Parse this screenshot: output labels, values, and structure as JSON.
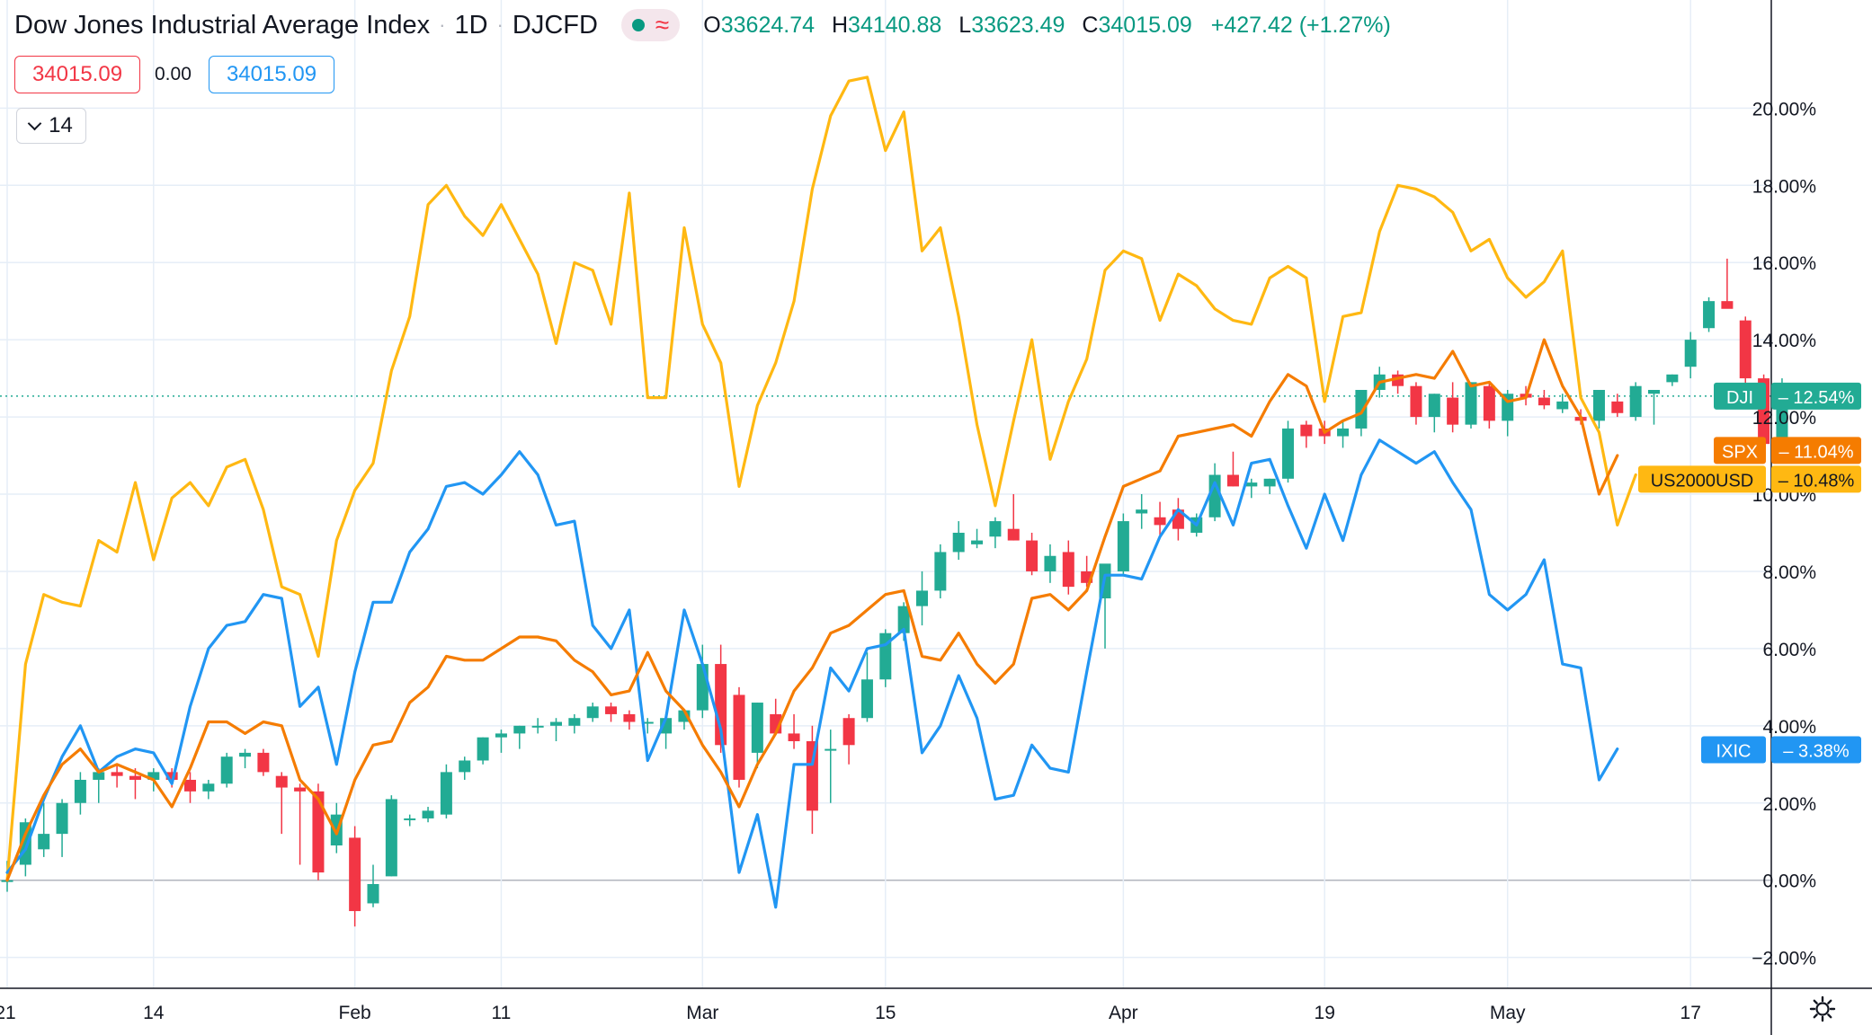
{
  "header": {
    "title": "Dow Jones Industrial Average Index",
    "interval": "1D",
    "exchange": "DJCFD",
    "ohlc": {
      "o_label": "O",
      "o": "33624.74",
      "h_label": "H",
      "h": "34140.88",
      "l_label": "L",
      "l": "33623.49",
      "c_label": "C",
      "c": "34015.09",
      "change": "+427.42 (+1.27%)"
    }
  },
  "price_boxes": {
    "sell": "34015.09",
    "spread": "0.00",
    "buy": "34015.09"
  },
  "period_selector": {
    "value": "14"
  },
  "colors": {
    "DJI_up": "#22ab94",
    "DJI_down": "#f23645",
    "SPX": "#f57c00",
    "US2000USD": "#ffb812",
    "IXIC": "#2196f3",
    "grid": "#e6eef7",
    "axis_text": "#131722",
    "zero_line": "#b2b5be"
  },
  "chart_data": {
    "type": "line",
    "y_unit": "% change",
    "ylim": [
      -2.8,
      22.8
    ],
    "y_ticks": [
      -2,
      0,
      2,
      4,
      6,
      8,
      10,
      12,
      14,
      16,
      18,
      20
    ],
    "y_tick_labels": [
      "−2.00%",
      "0.00%",
      "2.00%",
      "4.00%",
      "6.00%",
      "8.00%",
      "10.00%",
      "12.00%",
      "14.00%",
      "16.00%",
      "18.00%",
      "20.00%"
    ],
    "x_ticks": [
      {
        "label": "21",
        "index": 0
      },
      {
        "label": "14",
        "index": 8
      },
      {
        "label": "Feb",
        "index": 19
      },
      {
        "label": "11",
        "index": 27
      },
      {
        "label": "Mar",
        "index": 38
      },
      {
        "label": "15",
        "index": 48
      },
      {
        "label": "Apr",
        "index": 61
      },
      {
        "label": "19",
        "index": 72
      },
      {
        "label": "May",
        "index": 82
      },
      {
        "label": "17",
        "index": 92
      }
    ],
    "grid": true,
    "series": [
      {
        "name": "US2000USD",
        "type": "line",
        "last_label": "10.48%",
        "values": [
          0.0,
          5.6,
          7.4,
          7.2,
          7.1,
          8.8,
          8.5,
          10.3,
          8.3,
          9.9,
          10.3,
          9.7,
          10.7,
          10.9,
          9.6,
          7.6,
          7.4,
          5.8,
          8.8,
          10.1,
          10.8,
          13.2,
          14.6,
          17.5,
          18.0,
          17.2,
          16.7,
          17.5,
          16.6,
          15.7,
          13.9,
          16.0,
          15.8,
          14.4,
          17.8,
          12.5,
          12.5,
          16.9,
          14.4,
          13.4,
          10.2,
          12.3,
          13.4,
          15.0,
          17.9,
          19.8,
          20.7,
          20.8,
          18.9,
          19.9,
          16.3,
          16.9,
          14.6,
          11.8,
          9.7,
          11.9,
          14.0,
          10.9,
          12.4,
          13.5,
          15.8,
          16.3,
          16.1,
          14.5,
          15.7,
          15.4,
          14.8,
          14.5,
          14.4,
          15.6,
          15.9,
          15.6,
          12.4,
          14.6,
          14.7,
          16.8,
          18.0,
          17.9,
          17.7,
          17.3,
          16.3,
          16.6,
          15.6,
          15.1,
          15.5,
          16.3,
          12.5,
          11.6,
          9.2,
          10.5
        ]
      },
      {
        "name": "IXIC",
        "type": "line",
        "last_label": "3.38%",
        "values": [
          0.2,
          0.8,
          2.1,
          3.2,
          4.0,
          2.8,
          3.2,
          3.4,
          3.3,
          2.5,
          4.5,
          6.0,
          6.6,
          6.7,
          7.4,
          7.3,
          4.5,
          5.0,
          3.0,
          5.4,
          7.2,
          7.2,
          8.5,
          9.1,
          10.2,
          10.3,
          10.0,
          10.5,
          11.1,
          10.5,
          9.2,
          9.3,
          6.6,
          6.0,
          7.0,
          3.1,
          4.2,
          7.0,
          5.6,
          3.9,
          0.2,
          1.7,
          -0.7,
          3.0,
          3.0,
          5.5,
          4.9,
          6.0,
          6.1,
          6.5,
          3.3,
          4.0,
          5.3,
          4.2,
          2.1,
          2.2,
          3.5,
          2.9,
          2.8,
          5.4,
          7.9,
          7.9,
          7.8,
          8.9,
          9.6,
          9.2,
          10.3,
          9.2,
          10.8,
          10.9,
          9.7,
          8.6,
          10.0,
          8.8,
          10.5,
          11.4,
          11.1,
          10.8,
          11.1,
          10.3,
          9.6,
          7.4,
          7.0,
          7.4,
          8.3,
          5.6,
          5.5,
          2.6,
          3.4
        ]
      },
      {
        "name": "SPX",
        "type": "line",
        "last_label": "11.04%",
        "values": [
          0.0,
          1.2,
          2.2,
          3.0,
          3.4,
          2.8,
          3.0,
          2.8,
          2.6,
          1.9,
          2.9,
          4.1,
          4.1,
          3.8,
          4.1,
          4.0,
          2.6,
          2.1,
          1.2,
          2.6,
          3.5,
          3.6,
          4.6,
          5.0,
          5.8,
          5.7,
          5.7,
          6.0,
          6.3,
          6.3,
          6.2,
          5.7,
          5.4,
          4.8,
          4.9,
          5.9,
          4.9,
          4.4,
          3.5,
          2.8,
          1.9,
          3.0,
          3.8,
          4.9,
          5.5,
          6.4,
          6.6,
          7.0,
          7.4,
          7.5,
          5.8,
          5.7,
          6.4,
          5.6,
          5.1,
          5.6,
          7.3,
          7.4,
          7.0,
          7.5,
          8.9,
          10.2,
          10.4,
          10.6,
          11.5,
          11.6,
          11.7,
          11.8,
          11.5,
          12.4,
          13.1,
          12.8,
          11.6,
          11.9,
          12.1,
          12.9,
          13.0,
          13.1,
          13.0,
          13.7,
          12.8,
          12.9,
          12.4,
          12.5,
          14.0,
          12.8,
          12.0,
          10.0,
          11.0
        ]
      },
      {
        "name": "DJI",
        "type": "candlestick",
        "last_label": "12.54%",
        "candles": [
          {
            "o": 0.0,
            "h": 0.5,
            "l": -0.3,
            "c": 0.0
          },
          {
            "o": 0.4,
            "h": 1.6,
            "l": 0.1,
            "c": 1.5
          },
          {
            "o": 0.8,
            "h": 2.0,
            "l": 0.6,
            "c": 1.2
          },
          {
            "o": 1.2,
            "h": 2.1,
            "l": 0.6,
            "c": 2.0
          },
          {
            "o": 2.0,
            "h": 2.8,
            "l": 1.7,
            "c": 2.6
          },
          {
            "o": 2.6,
            "h": 2.9,
            "l": 2.0,
            "c": 2.8
          },
          {
            "o": 2.8,
            "h": 3.0,
            "l": 2.4,
            "c": 2.7
          },
          {
            "o": 2.7,
            "h": 2.9,
            "l": 2.1,
            "c": 2.6
          },
          {
            "o": 2.6,
            "h": 2.9,
            "l": 2.3,
            "c": 2.8
          },
          {
            "o": 2.8,
            "h": 2.9,
            "l": 2.4,
            "c": 2.6
          },
          {
            "o": 2.6,
            "h": 2.8,
            "l": 2.0,
            "c": 2.3
          },
          {
            "o": 2.3,
            "h": 2.6,
            "l": 2.1,
            "c": 2.5
          },
          {
            "o": 2.5,
            "h": 3.3,
            "l": 2.4,
            "c": 3.2
          },
          {
            "o": 3.2,
            "h": 3.4,
            "l": 2.9,
            "c": 3.3
          },
          {
            "o": 3.3,
            "h": 3.4,
            "l": 2.7,
            "c": 2.8
          },
          {
            "o": 2.7,
            "h": 2.8,
            "l": 1.2,
            "c": 2.4
          },
          {
            "o": 2.4,
            "h": 2.5,
            "l": 0.4,
            "c": 2.3
          },
          {
            "o": 2.3,
            "h": 2.5,
            "l": 0.0,
            "c": 0.2
          },
          {
            "o": 0.9,
            "h": 2.0,
            "l": 0.7,
            "c": 1.7
          },
          {
            "o": 1.1,
            "h": 1.4,
            "l": -1.2,
            "c": -0.8
          },
          {
            "o": -0.6,
            "h": 0.4,
            "l": -0.7,
            "c": -0.1
          },
          {
            "o": 0.1,
            "h": 2.2,
            "l": 0.1,
            "c": 2.1
          },
          {
            "o": 1.6,
            "h": 1.7,
            "l": 1.4,
            "c": 1.6
          },
          {
            "o": 1.6,
            "h": 1.9,
            "l": 1.5,
            "c": 1.8
          },
          {
            "o": 1.7,
            "h": 3.0,
            "l": 1.6,
            "c": 2.8
          },
          {
            "o": 2.8,
            "h": 3.2,
            "l": 2.6,
            "c": 3.1
          },
          {
            "o": 3.1,
            "h": 3.7,
            "l": 3.0,
            "c": 3.7
          },
          {
            "o": 3.7,
            "h": 3.9,
            "l": 3.3,
            "c": 3.8
          },
          {
            "o": 3.8,
            "h": 4.0,
            "l": 3.4,
            "c": 4.0
          },
          {
            "o": 4.0,
            "h": 4.2,
            "l": 3.8,
            "c": 4.0
          },
          {
            "o": 4.0,
            "h": 4.2,
            "l": 3.6,
            "c": 4.1
          },
          {
            "o": 4.0,
            "h": 4.3,
            "l": 3.8,
            "c": 4.2
          },
          {
            "o": 4.2,
            "h": 4.6,
            "l": 4.1,
            "c": 4.5
          },
          {
            "o": 4.5,
            "h": 4.6,
            "l": 4.1,
            "c": 4.3
          },
          {
            "o": 4.3,
            "h": 4.4,
            "l": 3.9,
            "c": 4.1
          },
          {
            "o": 4.1,
            "h": 4.2,
            "l": 3.8,
            "c": 4.1
          },
          {
            "o": 3.8,
            "h": 4.2,
            "l": 3.4,
            "c": 4.2
          },
          {
            "o": 4.1,
            "h": 4.4,
            "l": 3.9,
            "c": 4.4
          },
          {
            "o": 4.4,
            "h": 6.1,
            "l": 4.2,
            "c": 5.6
          },
          {
            "o": 5.6,
            "h": 6.1,
            "l": 3.3,
            "c": 3.5
          },
          {
            "o": 4.8,
            "h": 5.0,
            "l": 2.4,
            "c": 2.6
          },
          {
            "o": 3.3,
            "h": 4.6,
            "l": 2.9,
            "c": 4.6
          },
          {
            "o": 4.3,
            "h": 4.7,
            "l": 3.8,
            "c": 3.8
          },
          {
            "o": 3.8,
            "h": 4.3,
            "l": 3.4,
            "c": 3.6
          },
          {
            "o": 3.6,
            "h": 4.0,
            "l": 1.2,
            "c": 1.8
          },
          {
            "o": 3.4,
            "h": 3.9,
            "l": 2.0,
            "c": 3.4
          },
          {
            "o": 4.2,
            "h": 4.3,
            "l": 3.0,
            "c": 3.5
          },
          {
            "o": 4.2,
            "h": 5.9,
            "l": 4.1,
            "c": 5.2
          },
          {
            "o": 5.2,
            "h": 6.5,
            "l": 5.0,
            "c": 6.4
          },
          {
            "o": 6.4,
            "h": 7.2,
            "l": 6.2,
            "c": 7.1
          },
          {
            "o": 7.1,
            "h": 8.0,
            "l": 6.6,
            "c": 7.5
          },
          {
            "o": 7.5,
            "h": 8.7,
            "l": 7.3,
            "c": 8.5
          },
          {
            "o": 8.5,
            "h": 9.3,
            "l": 8.3,
            "c": 9.0
          },
          {
            "o": 8.7,
            "h": 9.1,
            "l": 8.6,
            "c": 8.8
          },
          {
            "o": 8.9,
            "h": 9.4,
            "l": 8.6,
            "c": 9.3
          },
          {
            "o": 9.1,
            "h": 10.0,
            "l": 8.8,
            "c": 8.8
          },
          {
            "o": 8.8,
            "h": 9.0,
            "l": 7.9,
            "c": 8.0
          },
          {
            "o": 8.0,
            "h": 8.7,
            "l": 7.7,
            "c": 8.4
          },
          {
            "o": 8.5,
            "h": 8.8,
            "l": 7.4,
            "c": 7.6
          },
          {
            "o": 8.0,
            "h": 8.4,
            "l": 7.6,
            "c": 7.7
          }
        ],
        "candles_tail": [
          {
            "o": 7.3,
            "h": 8.1,
            "l": 6.0,
            "c": 8.2
          },
          {
            "o": 8.0,
            "h": 9.5,
            "l": 7.9,
            "c": 9.3
          },
          {
            "o": 9.5,
            "h": 10.0,
            "l": 9.1,
            "c": 9.6
          },
          {
            "o": 9.4,
            "h": 9.8,
            "l": 8.9,
            "c": 9.2
          },
          {
            "o": 9.6,
            "h": 9.9,
            "l": 8.8,
            "c": 9.1
          },
          {
            "o": 9.0,
            "h": 9.5,
            "l": 8.9,
            "c": 9.4
          },
          {
            "o": 9.4,
            "h": 10.8,
            "l": 9.3,
            "c": 10.5
          },
          {
            "o": 10.5,
            "h": 11.1,
            "l": 10.2,
            "c": 10.2
          },
          {
            "o": 10.2,
            "h": 10.4,
            "l": 9.9,
            "c": 10.3
          },
          {
            "o": 10.2,
            "h": 10.4,
            "l": 10.0,
            "c": 10.4
          },
          {
            "o": 10.4,
            "h": 11.9,
            "l": 10.3,
            "c": 11.7
          },
          {
            "o": 11.8,
            "h": 11.9,
            "l": 11.2,
            "c": 11.5
          },
          {
            "o": 11.7,
            "h": 11.9,
            "l": 11.3,
            "c": 11.5
          },
          {
            "o": 11.5,
            "h": 11.9,
            "l": 11.2,
            "c": 11.7
          },
          {
            "o": 11.7,
            "h": 12.7,
            "l": 11.5,
            "c": 12.7
          },
          {
            "o": 12.7,
            "h": 13.3,
            "l": 12.5,
            "c": 13.1
          },
          {
            "o": 13.1,
            "h": 13.2,
            "l": 12.6,
            "c": 12.8
          },
          {
            "o": 12.8,
            "h": 12.9,
            "l": 11.8,
            "c": 12.0
          },
          {
            "o": 12.0,
            "h": 12.6,
            "l": 11.6,
            "c": 12.6
          },
          {
            "o": 12.5,
            "h": 12.9,
            "l": 11.6,
            "c": 11.8
          },
          {
            "o": 11.8,
            "h": 12.9,
            "l": 11.7,
            "c": 12.9
          },
          {
            "o": 12.8,
            "h": 12.9,
            "l": 11.7,
            "c": 11.9
          },
          {
            "o": 11.9,
            "h": 12.7,
            "l": 11.5,
            "c": 12.6
          },
          {
            "o": 12.6,
            "h": 12.8,
            "l": 12.3,
            "c": 12.5
          },
          {
            "o": 12.5,
            "h": 12.7,
            "l": 12.2,
            "c": 12.3
          },
          {
            "o": 12.2,
            "h": 12.6,
            "l": 12.1,
            "c": 12.4
          },
          {
            "o": 12.0,
            "h": 12.2,
            "l": 11.8,
            "c": 11.9
          },
          {
            "o": 11.9,
            "h": 12.7,
            "l": 11.7,
            "c": 12.7
          },
          {
            "o": 12.4,
            "h": 12.6,
            "l": 12.0,
            "c": 12.1
          },
          {
            "o": 12.0,
            "h": 12.9,
            "l": 11.9,
            "c": 12.8
          },
          {
            "o": 12.6,
            "h": 12.7,
            "l": 11.8,
            "c": 12.7
          },
          {
            "o": 12.9,
            "h": 13.1,
            "l": 12.8,
            "c": 13.1
          },
          {
            "o": 13.3,
            "h": 14.2,
            "l": 13.0,
            "c": 14.0
          },
          {
            "o": 14.3,
            "h": 15.1,
            "l": 14.2,
            "c": 15.0
          },
          {
            "o": 15.0,
            "h": 16.1,
            "l": 14.9,
            "c": 14.8
          },
          {
            "o": 14.5,
            "h": 14.6,
            "l": 12.7,
            "c": 13.0
          },
          {
            "o": 13.0,
            "h": 13.1,
            "l": 11.2,
            "c": 11.3
          },
          {
            "o": 11.3,
            "h": 13.0,
            "l": 11.2,
            "c": 12.54
          }
        ]
      }
    ],
    "current_line_value": 12.54
  }
}
